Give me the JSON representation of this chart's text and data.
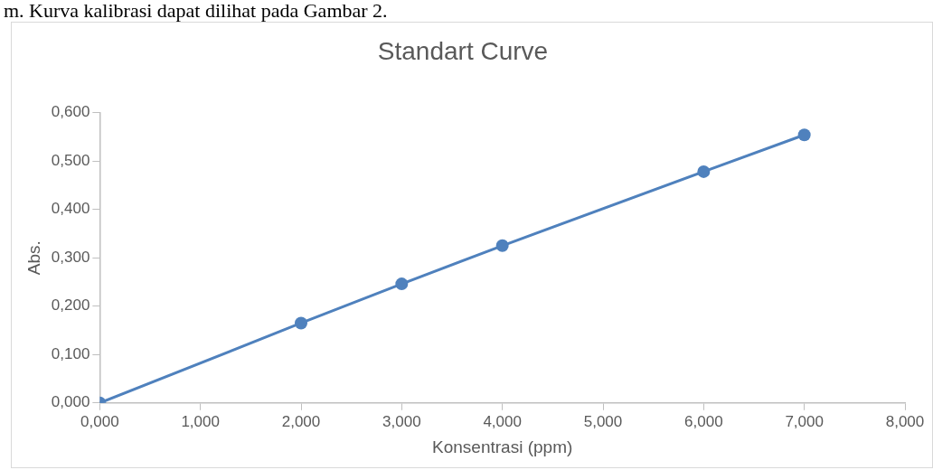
{
  "chart_data": {
    "type": "line",
    "title": "Standart Curve",
    "xlabel": "Konsentrasi (ppm)",
    "ylabel": "Abs.",
    "annotations": [
      "m. Kurva kalibrasi dapat dilihat pada Gambar 2."
    ],
    "x": [
      0,
      2,
      3,
      4,
      6,
      7
    ],
    "series": [
      {
        "color": "#4f81bd",
        "values": [
          0,
          0.165,
          0.246,
          0.325,
          0.478,
          0.554
        ]
      }
    ],
    "xlim": [
      0,
      8
    ],
    "ylim": [
      0,
      0.6
    ],
    "xticks": [
      {
        "value": 0,
        "label": "0,000"
      },
      {
        "value": 1,
        "label": "1,000"
      },
      {
        "value": 2,
        "label": "2,000"
      },
      {
        "value": 3,
        "label": "3,000"
      },
      {
        "value": 4,
        "label": "4,000"
      },
      {
        "value": 5,
        "label": "5,000"
      },
      {
        "value": 6,
        "label": "6,000"
      },
      {
        "value": 7,
        "label": "7,000"
      },
      {
        "value": 8,
        "label": "8,000"
      }
    ],
    "yticks": [
      {
        "value": 0,
        "label": "0,000"
      },
      {
        "value": 0.1,
        "label": "0,100"
      },
      {
        "value": 0.2,
        "label": "0,200"
      },
      {
        "value": 0.3,
        "label": "0,300"
      },
      {
        "value": 0.4,
        "label": "0,400"
      },
      {
        "value": 0.5,
        "label": "0,500"
      },
      {
        "value": 0.6,
        "label": "0,600"
      }
    ],
    "grid": false,
    "legend": false,
    "marker": "circle",
    "line_style": "solid"
  }
}
